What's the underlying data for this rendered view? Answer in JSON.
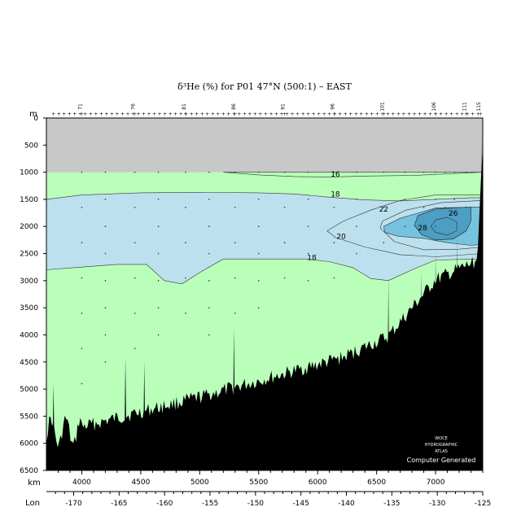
{
  "chart_data": {
    "type": "heatmap",
    "title": "δ³He (%) for P01 47°N (500:1) – EAST",
    "ylabel": "m",
    "xlabel": "km",
    "x2label": "Lon",
    "ylim": [
      6500,
      0
    ],
    "xlim_km": [
      3700,
      7400
    ],
    "y_ticks": [
      0,
      500,
      1000,
      1500,
      2000,
      2500,
      3000,
      3500,
      4000,
      4500,
      5000,
      5500,
      6000,
      6500
    ],
    "x_ticks_km": [
      4000,
      4500,
      5000,
      5500,
      6000,
      6500,
      7000
    ],
    "lon_ticks": [
      -170,
      -165,
      -160,
      -155,
      -150,
      -145,
      -140,
      -135,
      -130,
      -125
    ],
    "station_labels": [
      {
        "km": 4000,
        "label": "71"
      },
      {
        "km": 4450,
        "label": "76"
      },
      {
        "km": 4880,
        "label": "81"
      },
      {
        "km": 5300,
        "label": "86"
      },
      {
        "km": 5720,
        "label": "91"
      },
      {
        "km": 6140,
        "label": "96"
      },
      {
        "km": 6560,
        "label": "101"
      },
      {
        "km": 7000,
        "label": "106"
      },
      {
        "km": 7260,
        "label": "111"
      },
      {
        "km": 7380,
        "label": "115"
      }
    ],
    "contour_levels": [
      16,
      18,
      20,
      22,
      26,
      28
    ],
    "contour_labels": [
      {
        "text": "16",
        "km": 6150,
        "depth": 1080
      },
      {
        "text": "18",
        "km": 6150,
        "depth": 1450
      },
      {
        "text": "22",
        "km": 6560,
        "depth": 1730
      },
      {
        "text": "20",
        "km": 6200,
        "depth": 2230
      },
      {
        "text": "18",
        "km": 5950,
        "depth": 2620
      },
      {
        "text": "26",
        "km": 7150,
        "depth": 1800
      },
      {
        "text": "28",
        "km": 6890,
        "depth": 2070
      }
    ],
    "colors": {
      "upper_mask": "#c8c8c8",
      "green": "#b9ffba",
      "light_blue": "#bde0ee",
      "mid_blue": "#76c3e0",
      "dark_blue": "#4c9ec3",
      "bathymetry": "#000000"
    },
    "upper_mask_depth": 1000
  },
  "credits": {
    "line1": "WOCE",
    "line2": "HYDROGRAPHIC",
    "line3": "ATLAS",
    "line4": "Computer Generated"
  }
}
